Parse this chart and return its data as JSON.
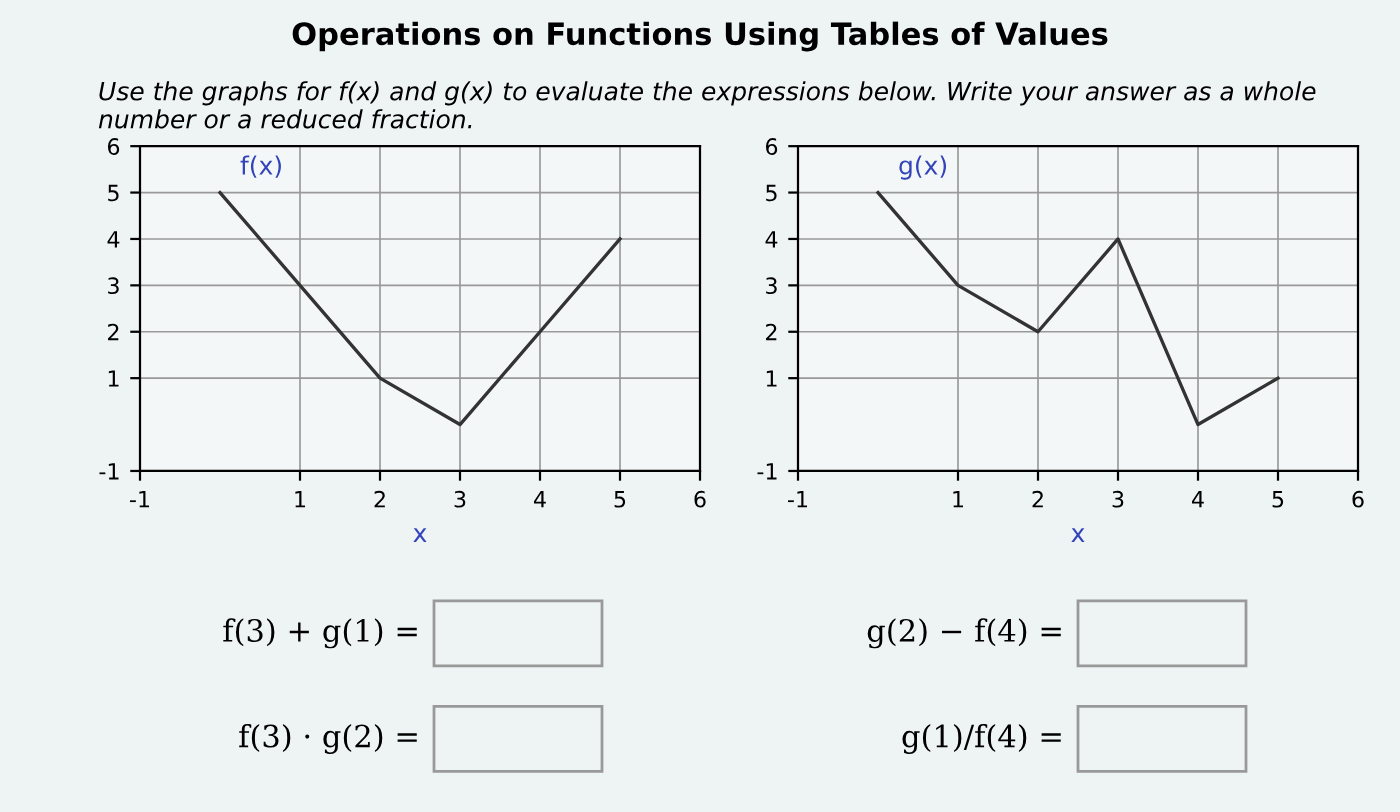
{
  "chart_data": [
    {
      "type": "line",
      "title": "Operations on Functions Using Tables of Values",
      "subtitle": "Use the graphs for f(x) and g(x) to evaluate the expressions below. Write your answer as a whole number or a reduced fraction.",
      "xlabel": "x",
      "x": [
        0,
        1,
        2,
        3,
        4,
        5
      ],
      "series": [
        {
          "name": "f(x)",
          "color": "#333333",
          "values": [
            5,
            3,
            1,
            0,
            2,
            4
          ]
        }
      ],
      "xlim": [
        -1,
        6
      ],
      "ylim": [
        -1,
        6
      ],
      "xticks": [
        -1,
        1,
        2,
        3,
        4,
        5,
        6
      ],
      "yticks": [
        -1,
        1,
        2,
        3,
        4,
        5,
        6
      ],
      "grid": true,
      "annotations": [
        "f(3) + g(1) =",
        "f(3) · g(2) ="
      ]
    },
    {
      "type": "line",
      "xlabel": "x",
      "x": [
        0,
        1,
        2,
        3,
        4,
        5
      ],
      "series": [
        {
          "name": "g(x)",
          "color": "#333333",
          "values": [
            5,
            3,
            2,
            4,
            0,
            1
          ]
        }
      ],
      "xlim": [
        -1,
        6
      ],
      "ylim": [
        -1,
        6
      ],
      "xticks": [
        -1,
        1,
        2,
        3,
        4,
        5,
        6
      ],
      "yticks": [
        -1,
        1,
        2,
        3,
        4,
        5,
        6
      ],
      "grid": true,
      "annotations": [
        "g(2) − f(4) =",
        "g(1)/f(4) ="
      ]
    }
  ]
}
